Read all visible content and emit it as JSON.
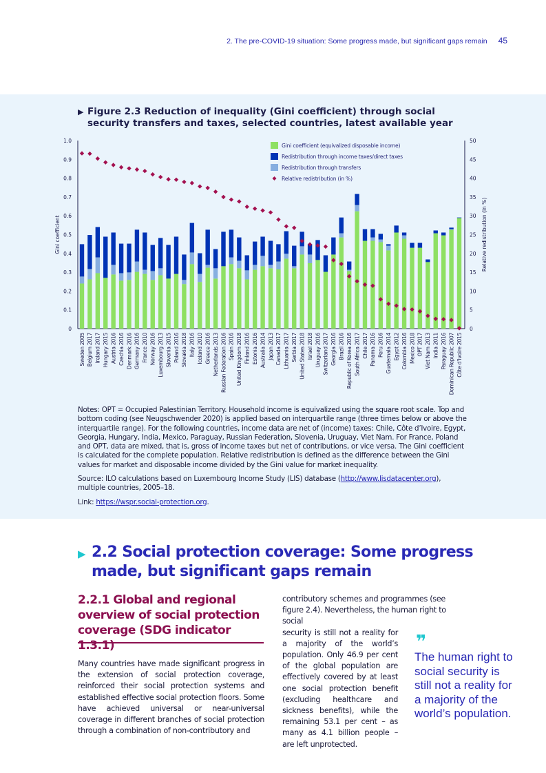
{
  "header": {
    "running_title": "2. The pre-COVID-19 situation: Some progress made, but significant gaps remain",
    "page_number": "45"
  },
  "figure": {
    "title": "Figure 2.3  Reduction of inequality (Gini coefficient) through social security transfers and taxes, selected countries, latest available year",
    "notes": "Notes: OPT = Occupied Palestinian Territory. Household income is equivalized using the square root scale. Top and bottom coding (see Neugschwender 2020) is applied based on interquartile range (three times below or above the interquartile range). For the following countries, income data are net of (income) taxes: Chile, Côte d’Ivoire, Egypt, Georgia, Hungary, India, Mexico, Paraguay, Russian Federation, Slovenia, Uruguay, Viet Nam. For France, Poland and OPT, data are mixed, that is, gross of income taxes but net of contributions, or vice versa. The Gini coefficient is calculated for the complete population. Relative redistribution is defined as the difference between the Gini values for market and disposable income divided by the Gini value for market inequality.",
    "source_prefix": "Source: ILO calculations based on Luxembourg Income Study (LIS) database (",
    "source_link": "http://www.lisdatacenter.org",
    "source_suffix": "), multiple countries, 2005–18.",
    "link_label": "Link: ",
    "link_url": "https://wspr.social-protection.org",
    "link_end": "."
  },
  "chart_data": {
    "type": "bar",
    "stacked": true,
    "ylabel": "Gini coefficient",
    "y2label": "Relative redistribution (in %)",
    "ylim": [
      0,
      1.0
    ],
    "y2lim": [
      0,
      50
    ],
    "yticks": [
      "0",
      "0.1",
      "0.2",
      "0.3",
      "0.4",
      "0.5",
      "0.6",
      "0.7",
      "0.8",
      "0.9",
      "1.0"
    ],
    "y2ticks": [
      "0",
      "5",
      "10",
      "15",
      "20",
      "25",
      "30",
      "35",
      "40",
      "45",
      "50"
    ],
    "grid": false,
    "legend_position": "top-right",
    "colors": {
      "gini": "#8ee063",
      "taxes": "#0033b5",
      "transfers": "#86aee0",
      "relative": "#a3104f",
      "axis": "#1a1a4a"
    },
    "categories": [
      "Sweden 2005",
      "Belgium 2017",
      "Ireland 2017",
      "Hungary 2015",
      "Austria 2016",
      "Czechia 2016",
      "Denmark 2016",
      "Germany 2016",
      "France 2010",
      "Norway 2016",
      "Luxembourg 2013",
      "Slovenia 2015",
      "Poland 2016",
      "Slovakia 2018",
      "Italy 2016",
      "Iceland 2010",
      "Greece 2016",
      "Netherlands 2013",
      "Russian Federation 2016",
      "Spain 2016",
      "United Kingdom 2018",
      "Finland 2016",
      "Estonia 2016",
      "Australia 2014",
      "Japan 2013",
      "Canada 2017",
      "Lithuania 2017",
      "Serbia 2017",
      "United States 2018",
      "Israel 2018",
      "Uruguay 2016",
      "Switzerland 2017",
      "Georgia 2016",
      "Brazil 2016",
      "Republic of Korea 2016",
      "South Africa 2017",
      "Chile 2017",
      "Panama 2016",
      "Peru 2016",
      "Guatemala 2014",
      "Egypt 2012",
      "Colombia 2016",
      "Mexico 2018",
      "OPT 2017",
      "Viet Nam 2013",
      "India 2011",
      "Paraguay 2016",
      "Dominican Republic 2007",
      "Côte d’Ivoire 2015"
    ],
    "series": [
      {
        "name": "Gini coefficient (equivalized disposable income)",
        "axis": "left",
        "values": [
          0.24,
          0.262,
          0.295,
          0.27,
          0.288,
          0.255,
          0.259,
          0.302,
          0.291,
          0.259,
          0.284,
          0.266,
          0.291,
          0.237,
          0.343,
          0.248,
          0.324,
          0.266,
          0.332,
          0.343,
          0.321,
          0.262,
          0.313,
          0.332,
          0.321,
          0.315,
          0.372,
          0.321,
          0.394,
          0.348,
          0.365,
          0.302,
          0.394,
          0.485,
          0.306,
          0.624,
          0.467,
          0.467,
          0.46,
          0.416,
          0.511,
          0.478,
          0.43,
          0.43,
          0.354,
          0.507,
          0.496,
          0.526,
          0.588
        ]
      },
      {
        "name": "Redistribution through transfers",
        "axis": "left",
        "values": [
          0.037,
          0.055,
          0.084,
          0,
          0.051,
          0.04,
          0.04,
          0.055,
          0.022,
          0.047,
          0.037,
          0,
          0,
          0.022,
          0.062,
          0.043,
          0.015,
          0.055,
          0,
          0.036,
          0.04,
          0.048,
          0.026,
          0.055,
          0.018,
          0.042,
          0.026,
          0.011,
          0.044,
          0.046,
          0,
          0,
          0,
          0.022,
          0.007,
          0.033,
          0,
          0.018,
          0.014,
          0.025,
          0,
          0.018,
          0,
          0,
          0,
          0,
          0,
          0.003,
          0
        ]
      },
      {
        "name": "Redistribution through income taxes/direct taxes",
        "axis": "left",
        "values": [
          0.172,
          0.181,
          0.161,
          0.219,
          0.172,
          0.157,
          0.153,
          0.169,
          0.198,
          0.139,
          0.161,
          0.179,
          0.198,
          0.135,
          0.157,
          0.11,
          0.187,
          0.102,
          0.183,
          0.147,
          0.124,
          0.08,
          0.124,
          0.102,
          0.128,
          0.092,
          0.12,
          0.109,
          0.077,
          0.055,
          0.106,
          0.088,
          0.091,
          0.084,
          0.044,
          0.059,
          0.062,
          0.044,
          0.03,
          0.008,
          0.037,
          0.015,
          0.026,
          0.026,
          0.014,
          0.015,
          0.015,
          0.008,
          0.003
        ]
      },
      {
        "name": "Relative redistribution (in %)",
        "axis": "right",
        "type": "scatter",
        "values": [
          46.6,
          46.5,
          45.2,
          44.2,
          43.5,
          42.9,
          42.6,
          42.3,
          41.9,
          41.0,
          40.3,
          39.7,
          39.6,
          39.0,
          38.7,
          37.8,
          37.4,
          36.4,
          35.0,
          34.3,
          33.8,
          32.4,
          31.9,
          31.4,
          30.9,
          29.0,
          27.2,
          26.8,
          23.3,
          22.4,
          22.1,
          21.8,
          18.2,
          17.2,
          13.9,
          12.6,
          11.7,
          11.4,
          7.8,
          6.6,
          6.1,
          5.2,
          5.1,
          4.6,
          3.4,
          2.6,
          2.5,
          2.3,
          0.1
        ]
      }
    ],
    "legend": [
      "Gini coefficient (equivalized disposable income)",
      "Redistribution through income taxes/direct taxes",
      "Redistribution through transfers",
      "Relative redistribution (in %)"
    ]
  },
  "section": {
    "title": "2.2 Social protection coverage: Some progress made, but significant gaps remain",
    "subtitle": "2.2.1  Global and regional overview of social protection coverage (SDG indicator 1.3.1)",
    "para_left": "Many countries have made significant progress in the extension of social protection coverage, reinforced their social protection systems and established effective social protection floors. Some have achieved universal or near-universal coverage in different branches of social protection through a combination of non-contributory and",
    "para_right_wide": "contributory schemes and programmes (see figure 2.4). Nevertheless, the human right to social",
    "para_right_narrow": "security is still not a reality for a majority of the world’s population. Only 46.9 per cent of the global population are effectively covered by at least one social protection benefit (excluding healthcare and sickness benefits), while the remaining 53.1 per cent – as many as 4.1 billion people – are left unprotected.",
    "pull_quote": "The human right to social security is still not a reality for a majority of the world’s population.",
    "quote_icon": "quote-mark-icon"
  }
}
